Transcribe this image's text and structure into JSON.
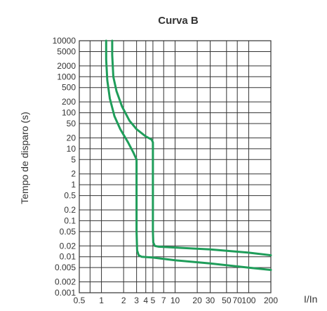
{
  "chart_data": {
    "type": "line",
    "title": "Curva B",
    "xlabel": "I/In",
    "ylabel": "Tempo de disparo (s)",
    "x_scale": "log",
    "y_scale": "log",
    "xlim": [
      0.5,
      200
    ],
    "ylim": [
      0.001,
      10000
    ],
    "grid": true,
    "x_ticks": [
      {
        "value": 0.5,
        "label": "0.5"
      },
      {
        "value": 1,
        "label": "1"
      },
      {
        "value": 2,
        "label": "2"
      },
      {
        "value": 3,
        "label": "3"
      },
      {
        "value": 4,
        "label": "4"
      },
      {
        "value": 5,
        "label": "5"
      },
      {
        "value": 7,
        "label": "7"
      },
      {
        "value": 10,
        "label": "10"
      },
      {
        "value": 20,
        "label": "20"
      },
      {
        "value": 30,
        "label": "30"
      },
      {
        "value": 50,
        "label": "50"
      },
      {
        "value": 70,
        "label": "70"
      },
      {
        "value": 100,
        "label": "100"
      },
      {
        "value": 200,
        "label": "200"
      }
    ],
    "y_ticks": [
      {
        "value": 10000,
        "label": "10000"
      },
      {
        "value": 5000,
        "label": "5000"
      },
      {
        "value": 2000,
        "label": "2000"
      },
      {
        "value": 1000,
        "label": "1000"
      },
      {
        "value": 500,
        "label": "500"
      },
      {
        "value": 200,
        "label": "200"
      },
      {
        "value": 100,
        "label": "100"
      },
      {
        "value": 50,
        "label": "50"
      },
      {
        "value": 20,
        "label": "20"
      },
      {
        "value": 10,
        "label": "10"
      },
      {
        "value": 5,
        "label": "5"
      },
      {
        "value": 2,
        "label": "2"
      },
      {
        "value": 1,
        "label": "1"
      },
      {
        "value": 0.5,
        "label": "0.5"
      },
      {
        "value": 0.2,
        "label": "0.2"
      },
      {
        "value": 0.1,
        "label": "0.1"
      },
      {
        "value": 0.05,
        "label": "0.05"
      },
      {
        "value": 0.02,
        "label": "0.02"
      },
      {
        "value": 0.01,
        "label": "0.01"
      },
      {
        "value": 0.005,
        "label": "0.005"
      },
      {
        "value": 0.002,
        "label": "0.002"
      },
      {
        "value": 0.001,
        "label": "0.001"
      }
    ],
    "x_grid": [
      0.7,
      1,
      2,
      3,
      4,
      5,
      7,
      10,
      20,
      30,
      50,
      70,
      100
    ],
    "y_grid": [
      5000,
      2000,
      1000,
      500,
      200,
      100,
      50,
      20,
      10,
      5,
      2,
      1,
      0.5,
      0.2,
      0.1,
      0.05,
      0.02,
      0.01,
      0.005,
      0.002
    ],
    "series": [
      {
        "color": "#1f9d5a",
        "x": [
          1.16,
          1.16,
          1.2,
          1.3,
          1.5,
          1.8,
          2.3,
          2.7,
          3.0,
          3.0,
          3.0,
          3.05,
          3.2,
          3.5,
          5,
          10,
          30,
          100,
          200
        ],
        "y": [
          10000,
          3000,
          800,
          250,
          80,
          35,
          15,
          8,
          5,
          1,
          0.05,
          0.015,
          0.011,
          0.01,
          0.0095,
          0.008,
          0.0065,
          0.005,
          0.0043
        ]
      },
      {
        "color": "#1f9d5a",
        "x": [
          1.4,
          1.4,
          1.45,
          1.6,
          1.9,
          2.4,
          3.0,
          4.0,
          4.8,
          5.0,
          5.0,
          5.0,
          5.05,
          5.3,
          6,
          10,
          30,
          100,
          200
        ],
        "y": [
          10000,
          4000,
          1000,
          400,
          150,
          60,
          35,
          22,
          18,
          15,
          2,
          0.05,
          0.025,
          0.02,
          0.019,
          0.018,
          0.016,
          0.013,
          0.011
        ]
      }
    ]
  }
}
